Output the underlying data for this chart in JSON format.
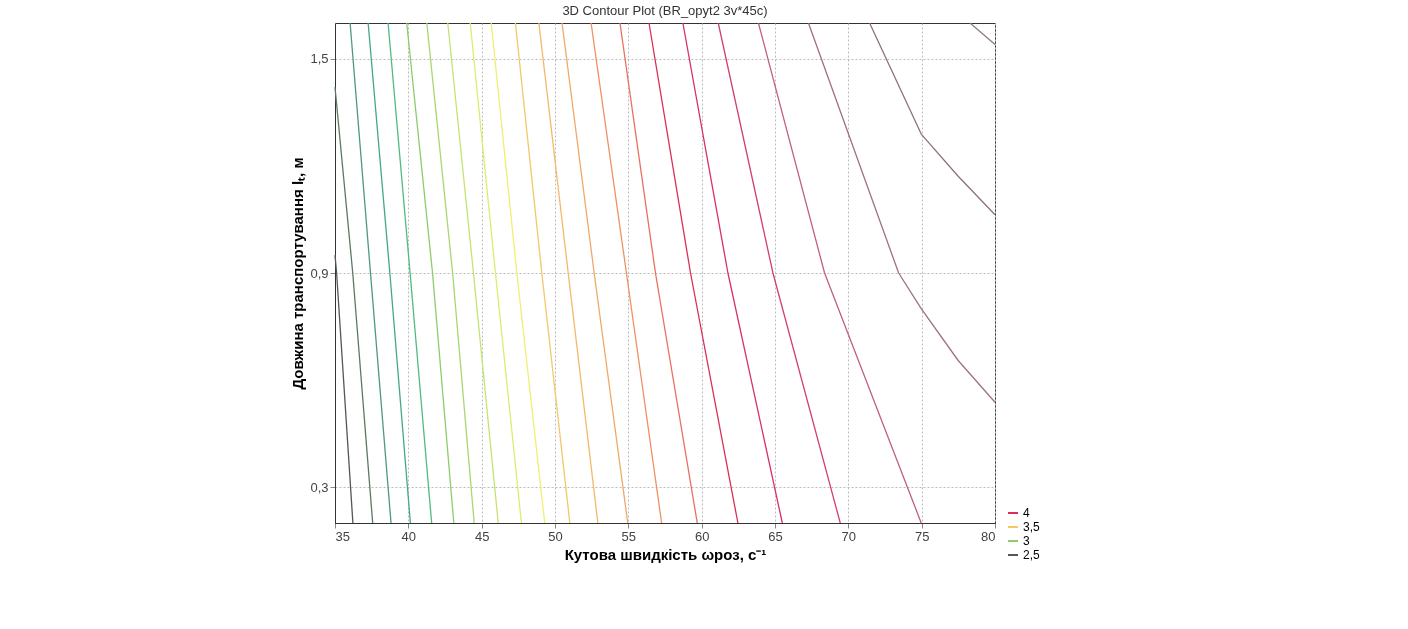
{
  "chart_data": {
    "type": "line",
    "title": "3D Contour Plot (BR_opyt2 3v*45c)",
    "xlabel": "Кутова швидкість ωроз, с⁻¹",
    "ylabel": "Довжина транспортування lₜ, м",
    "xlim": [
      35,
      80
    ],
    "ylim": [
      0.2,
      1.6
    ],
    "xticks": [
      35,
      40,
      45,
      50,
      55,
      60,
      65,
      70,
      75,
      80
    ],
    "yticks": [
      {
        "value": 0.3,
        "label": "0,3"
      },
      {
        "value": 0.9,
        "label": "0,9"
      },
      {
        "value": 1.5,
        "label": "1,5"
      }
    ],
    "grid": true,
    "legend": "bottom right",
    "marker": "none",
    "line_style": "solid",
    "series": [
      {
        "name": "2,5",
        "color": "#505a50",
        "x": [
          35,
          35.11,
          36.22
        ],
        "values": [
          0.95,
          0.9,
          0.2
        ]
      },
      {
        "color": "#5a7a62",
        "x": [
          35,
          36.21,
          37.57
        ],
        "values": [
          1.42,
          0.9,
          0.2
        ]
      },
      {
        "color": "#4f9a78",
        "x": [
          36.03,
          37.42,
          38.82
        ],
        "values": [
          1.6,
          0.9,
          0.2
        ]
      },
      {
        "color": "#45aa80",
        "x": [
          37.26,
          38.74,
          40.14
        ],
        "values": [
          1.6,
          0.9,
          0.2
        ]
      },
      {
        "color": "#50bb80",
        "x": [
          38.62,
          40.12,
          41.59
        ],
        "values": [
          1.6,
          0.9,
          0.2
        ]
      },
      {
        "name": "3",
        "color": "#8ccc6a",
        "x": [
          39.89,
          41.65,
          43.1
        ],
        "values": [
          1.6,
          0.9,
          0.2
        ]
      },
      {
        "color": "#a8d870",
        "x": [
          41.26,
          43.02,
          44.49
        ],
        "values": [
          1.6,
          0.9,
          0.2
        ]
      },
      {
        "color": "#c4e470",
        "x": [
          42.69,
          44.44,
          46.13
        ],
        "values": [
          1.6,
          0.9,
          0.2
        ]
      },
      {
        "color": "#dcec70",
        "x": [
          44.22,
          45.94,
          47.71
        ],
        "values": [
          1.6,
          0.9,
          0.2
        ]
      },
      {
        "color": "#eef070",
        "x": [
          45.65,
          47.4,
          49.3
        ],
        "values": [
          1.6,
          0.9,
          0.2
        ]
      },
      {
        "name": "3,5",
        "color": "#f4c868",
        "x": [
          47.3,
          49.1,
          51.01
        ],
        "values": [
          1.6,
          0.9,
          0.2
        ]
      },
      {
        "color": "#f4b868",
        "x": [
          48.9,
          50.9,
          52.92
        ],
        "values": [
          1.6,
          0.9,
          0.2
        ]
      },
      {
        "color": "#f2a868",
        "x": [
          50.48,
          52.67,
          54.96
        ],
        "values": [
          1.6,
          0.9,
          0.2
        ]
      },
      {
        "color": "#f09064",
        "x": [
          52.46,
          54.87,
          57.27
        ],
        "values": [
          1.6,
          0.9,
          0.2
        ]
      },
      {
        "color": "#e87060",
        "x": [
          54.43,
          56.85,
          59.7
        ],
        "values": [
          1.6,
          0.9,
          0.2
        ]
      },
      {
        "name": "4",
        "color": "#d83058",
        "x": [
          56.41,
          59.24,
          62.47
        ],
        "values": [
          1.6,
          0.9,
          0.2
        ]
      },
      {
        "color": "#d8306a",
        "x": [
          58.72,
          61.79,
          65.5
        ],
        "values": [
          1.6,
          0.9,
          0.2
        ]
      },
      {
        "color": "#d04070",
        "x": [
          61.13,
          64.86,
          69.45
        ],
        "values": [
          1.6,
          0.9,
          0.2
        ]
      },
      {
        "color": "#c0607a",
        "x": [
          63.87,
          68.38,
          74.97
        ],
        "values": [
          1.6,
          0.9,
          0.2
        ]
      },
      {
        "color": "#a07080",
        "x": [
          67.28,
          73.43,
          74.97,
          77.49,
          80
        ],
        "values": [
          1.6,
          0.9,
          0.8,
          0.655,
          0.538
        ]
      },
      {
        "color": "#907080",
        "x": [
          71.45,
          74.97,
          77.49,
          80
        ],
        "values": [
          1.6,
          1.289,
          1.171,
          1.063
        ]
      },
      {
        "color": "#907888",
        "x": [
          78.3,
          80
        ],
        "values": [
          1.6,
          1.54
        ]
      }
    ]
  }
}
